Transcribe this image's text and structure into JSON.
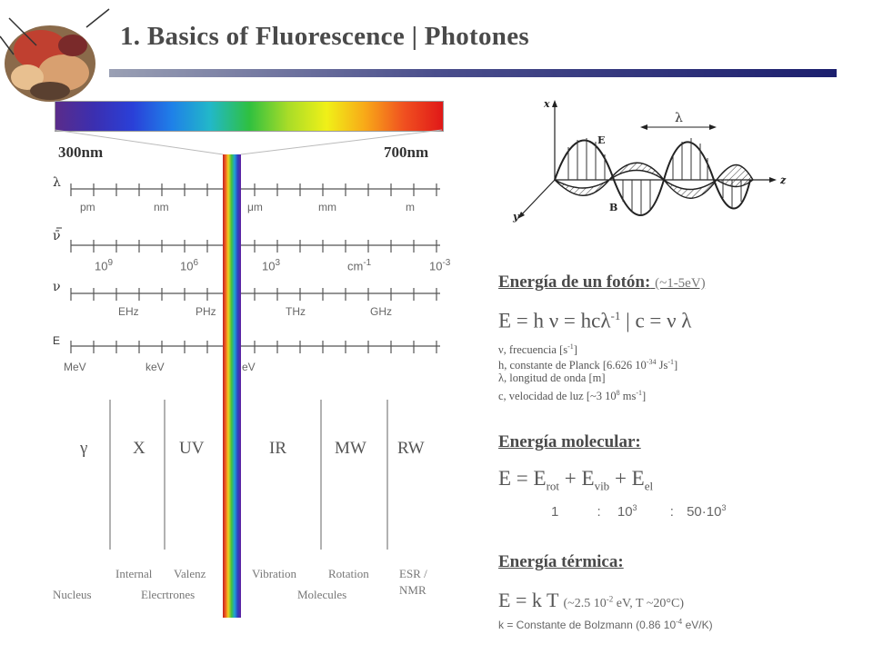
{
  "header": {
    "title": "1. Basics of Fluorescence | Photones"
  },
  "spectrum": {
    "min_label": "300nm",
    "max_label": "700nm",
    "scales": {
      "lambda": {
        "symbol": "λ",
        "units": [
          "pm",
          "nm",
          "μm",
          "mm",
          "m"
        ]
      },
      "wavenumber": {
        "symbol": "ν̄",
        "labels": [
          {
            "base": "10",
            "exp": "9"
          },
          {
            "base": "10",
            "exp": "6"
          },
          {
            "base": "10",
            "exp": "3"
          },
          {
            "base": "cm",
            "exp": "-1"
          },
          {
            "base": "10",
            "exp": "-3"
          }
        ]
      },
      "frequency": {
        "symbol": "ν",
        "units": [
          "EHz",
          "PHz",
          "THz",
          "GHz"
        ]
      },
      "energy": {
        "symbol": "E",
        "units": [
          "MeV",
          "keV",
          "eV"
        ]
      }
    },
    "regions": [
      "γ",
      "X",
      "UV",
      "IR",
      "MW",
      "RW"
    ],
    "processes_top": [
      "Internal",
      "Valenz",
      "Vibration",
      "Rotation",
      "ESR /"
    ],
    "processes_bottom": [
      "Nucleus",
      "Elecrtrones",
      "Molecules",
      "NMR"
    ]
  },
  "wave_diagram": {
    "labels": {
      "x": "x",
      "y": "y",
      "z": "z",
      "E": "E",
      "B": "B",
      "lambda": "λ"
    }
  },
  "photon_energy": {
    "title": "Energía de un fotón:",
    "note": "(~1-5eV)",
    "formula_parts": [
      "E  =  h ν  =  hcλ",
      "-1",
      "  |  c  =  ν  λ"
    ],
    "definitions": [
      {
        "pre": "ν, frecuencia [s",
        "sup": "-1",
        "post": "]"
      },
      {
        "pre": "h, constante de Planck [6.626 10",
        "sup": "-34",
        "post": " Js",
        "sup2": "-1",
        "post2": "]"
      },
      {
        "pre": "λ, longitud de onda [m]",
        "sup": "",
        "post": ""
      },
      {
        "pre": "c, velocidad de luz [~3 10",
        "sup": "8",
        "post": " ms",
        "sup2": "-1",
        "post2": "]"
      }
    ]
  },
  "molecular_energy": {
    "title": "Energía molecular:",
    "formula": {
      "lhs": "E =  E",
      "rot": "rot",
      "plus1": "  +   E",
      "vib": "vib",
      "plus2": "  + E",
      "el": "el"
    },
    "ratio": {
      "a": "1",
      "sep1": ":",
      "b": "10",
      "b_exp": "3",
      "sep2": ":",
      "c": "50·10",
      "c_exp": "3"
    }
  },
  "thermal_energy": {
    "title": "Energía térmica:",
    "formula": "E = k T",
    "note_pre": "(~2.5 10",
    "note_exp": "-2",
    "note_post": " eV, T ~20°C)",
    "k_pre": "k = Constante de Bolzmann (0.86 10",
    "k_exp": "-4",
    "k_post": " eV/K)"
  },
  "colors": {
    "title": "#4a4a4a",
    "bar_dark": "#1c1f6e",
    "text": "#555555"
  }
}
